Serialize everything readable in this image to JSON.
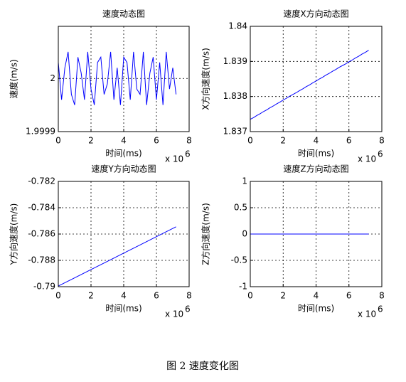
{
  "chart_data": [
    {
      "type": "line",
      "title": "速度动态图",
      "xlabel": "时间(ms)",
      "ylabel": "速度(m/s)",
      "x_multiplier": "x 10",
      "x_multiplier_exp": "6",
      "x": [
        0,
        0.2,
        0.4,
        0.6,
        0.8,
        1,
        1.2,
        1.4,
        1.6,
        1.8,
        2,
        2.2,
        2.4,
        2.6,
        2.8,
        3,
        3.2,
        3.4,
        3.6,
        3.8,
        4,
        4.2,
        4.4,
        4.6,
        4.8,
        5,
        5.2,
        5.4,
        5.6,
        5.8,
        6,
        6.2,
        6.4,
        6.6,
        6.8,
        7,
        7.2
      ],
      "values": [
        2.00003,
        1.99996,
        2.00002,
        2.00005,
        1.99997,
        1.99995,
        2.00004,
        2.00001,
        1.99996,
        2.00005,
        1.99998,
        1.99995,
        2.00003,
        2.00004,
        1.99997,
        1.99999,
        2.00005,
        1.99996,
        2.00002,
        1.99995,
        2.00004,
        2.00003,
        1.99996,
        2.00005,
        1.99998,
        1.99997,
        2.00005,
        1.99995,
        2.00001,
        2.00004,
        1.99996,
        2.00003,
        1.99995,
        2.00005,
        1.99998,
        2.00002,
        1.99997
      ],
      "color": "#0000ff",
      "xlim": [
        0,
        8
      ],
      "xticks": [
        0,
        2,
        4,
        6,
        8
      ],
      "ylim": [
        1.9999,
        2.000098
      ],
      "yticks": [
        1.9999,
        2
      ],
      "grid": true
    },
    {
      "type": "line",
      "title": "速度X方向动态图",
      "xlabel": "时间(ms)",
      "ylabel": "X方向速度(m/s)",
      "x_multiplier": "x 10",
      "x_multiplier_exp": "6",
      "x": [
        0,
        0.2,
        0.4,
        0.6,
        0.8,
        1,
        1.2,
        1.4,
        1.6,
        1.8,
        2,
        2.2,
        2.4,
        2.6,
        2.8,
        3,
        3.2,
        3.4,
        3.6,
        3.8,
        4,
        4.2,
        4.4,
        4.6,
        4.8,
        5,
        5.2,
        5.4,
        5.6,
        5.8,
        6,
        6.2,
        6.4,
        6.6,
        6.8,
        7,
        7.2
      ],
      "values": [
        1.83735,
        1.8374,
        1.83746,
        1.83751,
        1.83757,
        1.83762,
        1.83768,
        1.83773,
        1.83779,
        1.83784,
        1.8379,
        1.83795,
        1.83801,
        1.83806,
        1.83811,
        1.83817,
        1.83822,
        1.83828,
        1.83833,
        1.83839,
        1.83844,
        1.8385,
        1.83855,
        1.83861,
        1.83866,
        1.83872,
        1.83877,
        1.83883,
        1.83888,
        1.83893,
        1.83899,
        1.83904,
        1.8391,
        1.83915,
        1.83921,
        1.83926,
        1.83932
      ],
      "color": "#0000ff",
      "xlim": [
        0,
        8
      ],
      "xticks": [
        0,
        2,
        4,
        6,
        8
      ],
      "ylim": [
        1.837,
        1.84
      ],
      "yticks": [
        1.837,
        1.838,
        1.839,
        1.84
      ],
      "grid": true
    },
    {
      "type": "line",
      "title": "速度Y方向动态图",
      "xlabel": "时间(ms)",
      "ylabel": "Y方向速度(m/s)",
      "x_multiplier": "x 10",
      "x_multiplier_exp": "6",
      "x": [
        0,
        1,
        2,
        3,
        4,
        5,
        6,
        7.2
      ],
      "values": [
        -0.78995,
        -0.78933,
        -0.7887,
        -0.78808,
        -0.78745,
        -0.78683,
        -0.7862,
        -0.78545
      ],
      "color": "#0000ff",
      "xlim": [
        0,
        8
      ],
      "xticks": [
        0,
        2,
        4,
        6,
        8
      ],
      "ylim": [
        -0.79,
        -0.782
      ],
      "yticks": [
        -0.79,
        -0.788,
        -0.786,
        -0.784,
        -0.782
      ],
      "grid": true
    },
    {
      "type": "line",
      "title": "速度Z方向动态图",
      "xlabel": "时间(ms)",
      "ylabel": "Z方向速度(m/s)",
      "x_multiplier": "x 10",
      "x_multiplier_exp": "6",
      "x": [
        0,
        7.2
      ],
      "values": [
        0,
        0
      ],
      "color": "#0000ff",
      "xlim": [
        0,
        8
      ],
      "xticks": [
        0,
        2,
        4,
        6,
        8
      ],
      "ylim": [
        -1,
        1
      ],
      "yticks": [
        -1,
        -0.5,
        0,
        0.5,
        1
      ],
      "grid": true
    }
  ],
  "caption": "图 2 速度变化图"
}
